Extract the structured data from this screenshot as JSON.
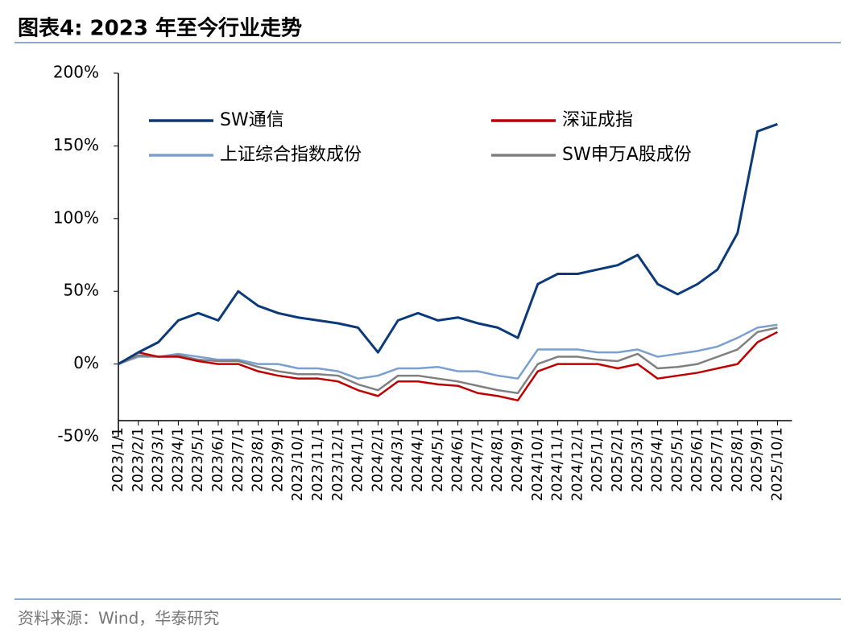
{
  "chart_data": {
    "type": "line",
    "title": "图表4:  2023 年至今行业走势",
    "source": "资料来源：Wind，华泰研究",
    "categories": [
      "2023/1/1",
      "2023/2/1",
      "2023/3/1",
      "2023/4/1",
      "2023/5/1",
      "2023/6/1",
      "2023/7/1",
      "2023/8/1",
      "2023/9/1",
      "2023/10/1",
      "2023/11/1",
      "2023/12/1",
      "2024/1/1",
      "2024/2/1",
      "2024/3/1",
      "2024/4/1",
      "2024/5/1",
      "2024/6/1",
      "2024/7/1",
      "2024/8/1",
      "2024/9/1",
      "2024/10/1",
      "2024/11/1",
      "2024/12/1",
      "2025/1/1",
      "2025/2/1",
      "2025/3/1",
      "2025/4/1",
      "2025/5/1",
      "2025/6/1",
      "2025/7/1",
      "2025/8/1",
      "2025/9/1",
      "2025/10/1"
    ],
    "series": [
      {
        "name": "上证综合指数成份",
        "color": "#7a9fd0",
        "values": [
          0,
          5,
          5,
          7,
          5,
          3,
          3,
          0,
          0,
          -3,
          -3,
          -5,
          -10,
          -8,
          -3,
          -3,
          -2,
          -5,
          -5,
          -8,
          -10,
          10,
          10,
          10,
          8,
          8,
          10,
          5,
          7,
          9,
          12,
          18,
          25,
          27
        ]
      },
      {
        "name": "SW申万A股成份",
        "color": "#808080",
        "values": [
          0,
          6,
          5,
          6,
          3,
          2,
          2,
          -2,
          -5,
          -7,
          -7,
          -8,
          -14,
          -18,
          -8,
          -8,
          -10,
          -12,
          -15,
          -18,
          -20,
          0,
          5,
          5,
          3,
          2,
          7,
          -3,
          -2,
          0,
          5,
          10,
          22,
          25
        ]
      },
      {
        "name": "深证成指",
        "color": "#c00000",
        "values": [
          0,
          8,
          5,
          5,
          2,
          0,
          0,
          -5,
          -8,
          -10,
          -10,
          -12,
          -18,
          -22,
          -12,
          -12,
          -14,
          -15,
          -20,
          -22,
          -25,
          -5,
          0,
          0,
          0,
          -3,
          0,
          -10,
          -8,
          -6,
          -3,
          0,
          15,
          22
        ]
      },
      {
        "name": "SW通信",
        "color": "#0b3a7a",
        "values": [
          0,
          8,
          15,
          30,
          35,
          30,
          50,
          40,
          35,
          32,
          30,
          28,
          25,
          8,
          30,
          35,
          30,
          32,
          28,
          25,
          18,
          55,
          62,
          62,
          65,
          68,
          75,
          55,
          48,
          55,
          65,
          90,
          160,
          165
        ]
      }
    ],
    "ylim": [
      -50,
      200
    ],
    "yticks": [
      {
        "value": -50,
        "label": "-50%"
      },
      {
        "value": 0,
        "label": "0%"
      },
      {
        "value": 50,
        "label": "50%"
      },
      {
        "value": 100,
        "label": "100%"
      },
      {
        "value": 150,
        "label": "150%"
      },
      {
        "value": 200,
        "label": "200%"
      }
    ]
  }
}
